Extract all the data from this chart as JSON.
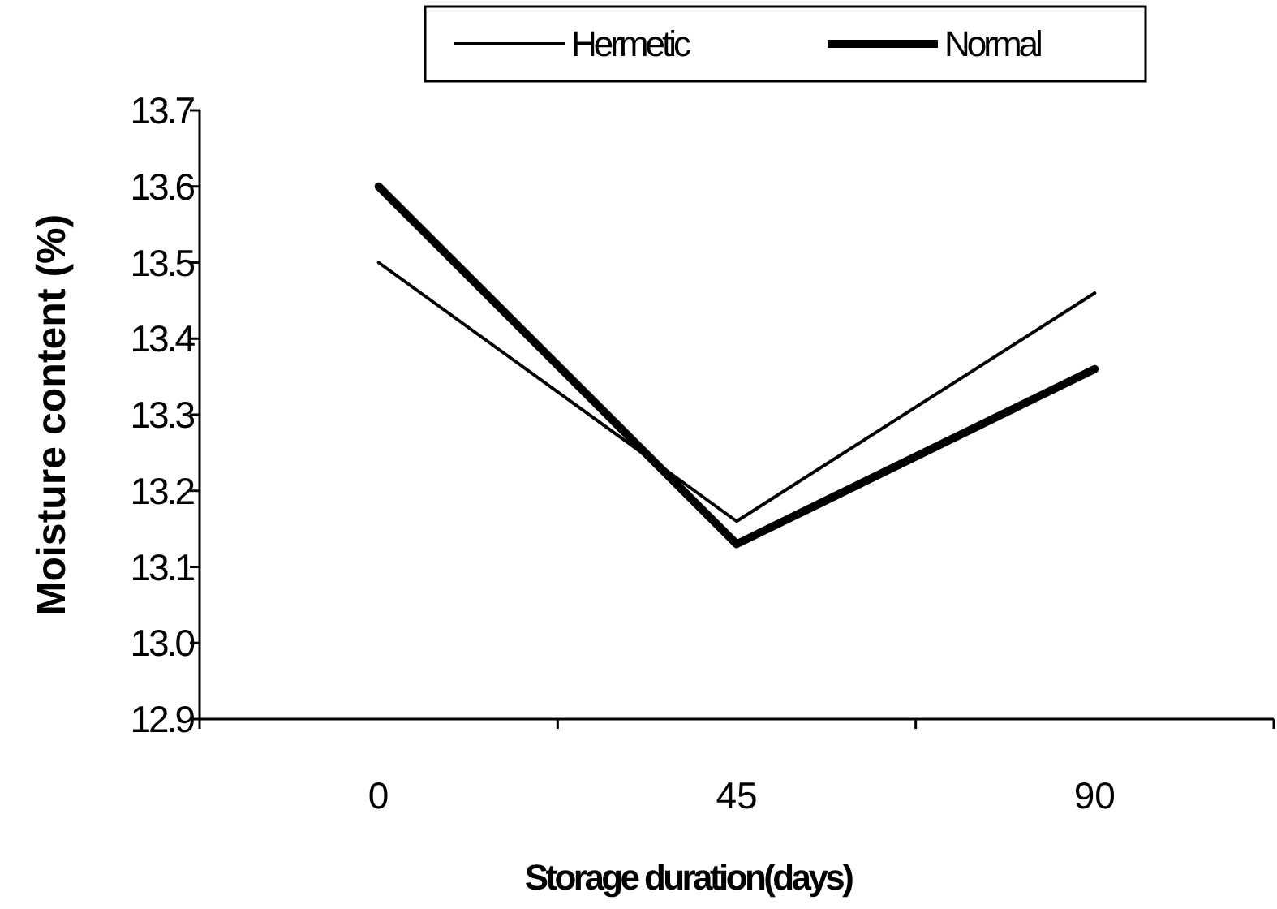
{
  "chart_data": {
    "type": "line",
    "xlabel": "Storage duration(days)",
    "ylabel": "Moisture content (%)",
    "categories": [
      "0",
      "45",
      "90"
    ],
    "series": [
      {
        "name": "Hermetic",
        "color": "#000000",
        "values": [
          13.5,
          13.16,
          13.46
        ]
      },
      {
        "name": "Normal",
        "color": "#000000",
        "values": [
          13.6,
          13.13,
          13.36
        ]
      }
    ],
    "ylim": [
      12.9,
      13.7
    ],
    "yticks": [
      {
        "value": 12.9,
        "label": "12.9"
      },
      {
        "value": 13.0,
        "label": "13.0"
      },
      {
        "value": 13.1,
        "label": "13.1"
      },
      {
        "value": 13.2,
        "label": "13.2"
      },
      {
        "value": 13.3,
        "label": "13.3"
      },
      {
        "value": 13.4,
        "label": "13.4"
      },
      {
        "value": 13.5,
        "label": "13.5"
      },
      {
        "value": 13.6,
        "label": "13.6"
      },
      {
        "value": 13.7,
        "label": "13.7"
      }
    ],
    "legend": "top",
    "grid": false,
    "marker": "none",
    "line_style": "solid"
  }
}
